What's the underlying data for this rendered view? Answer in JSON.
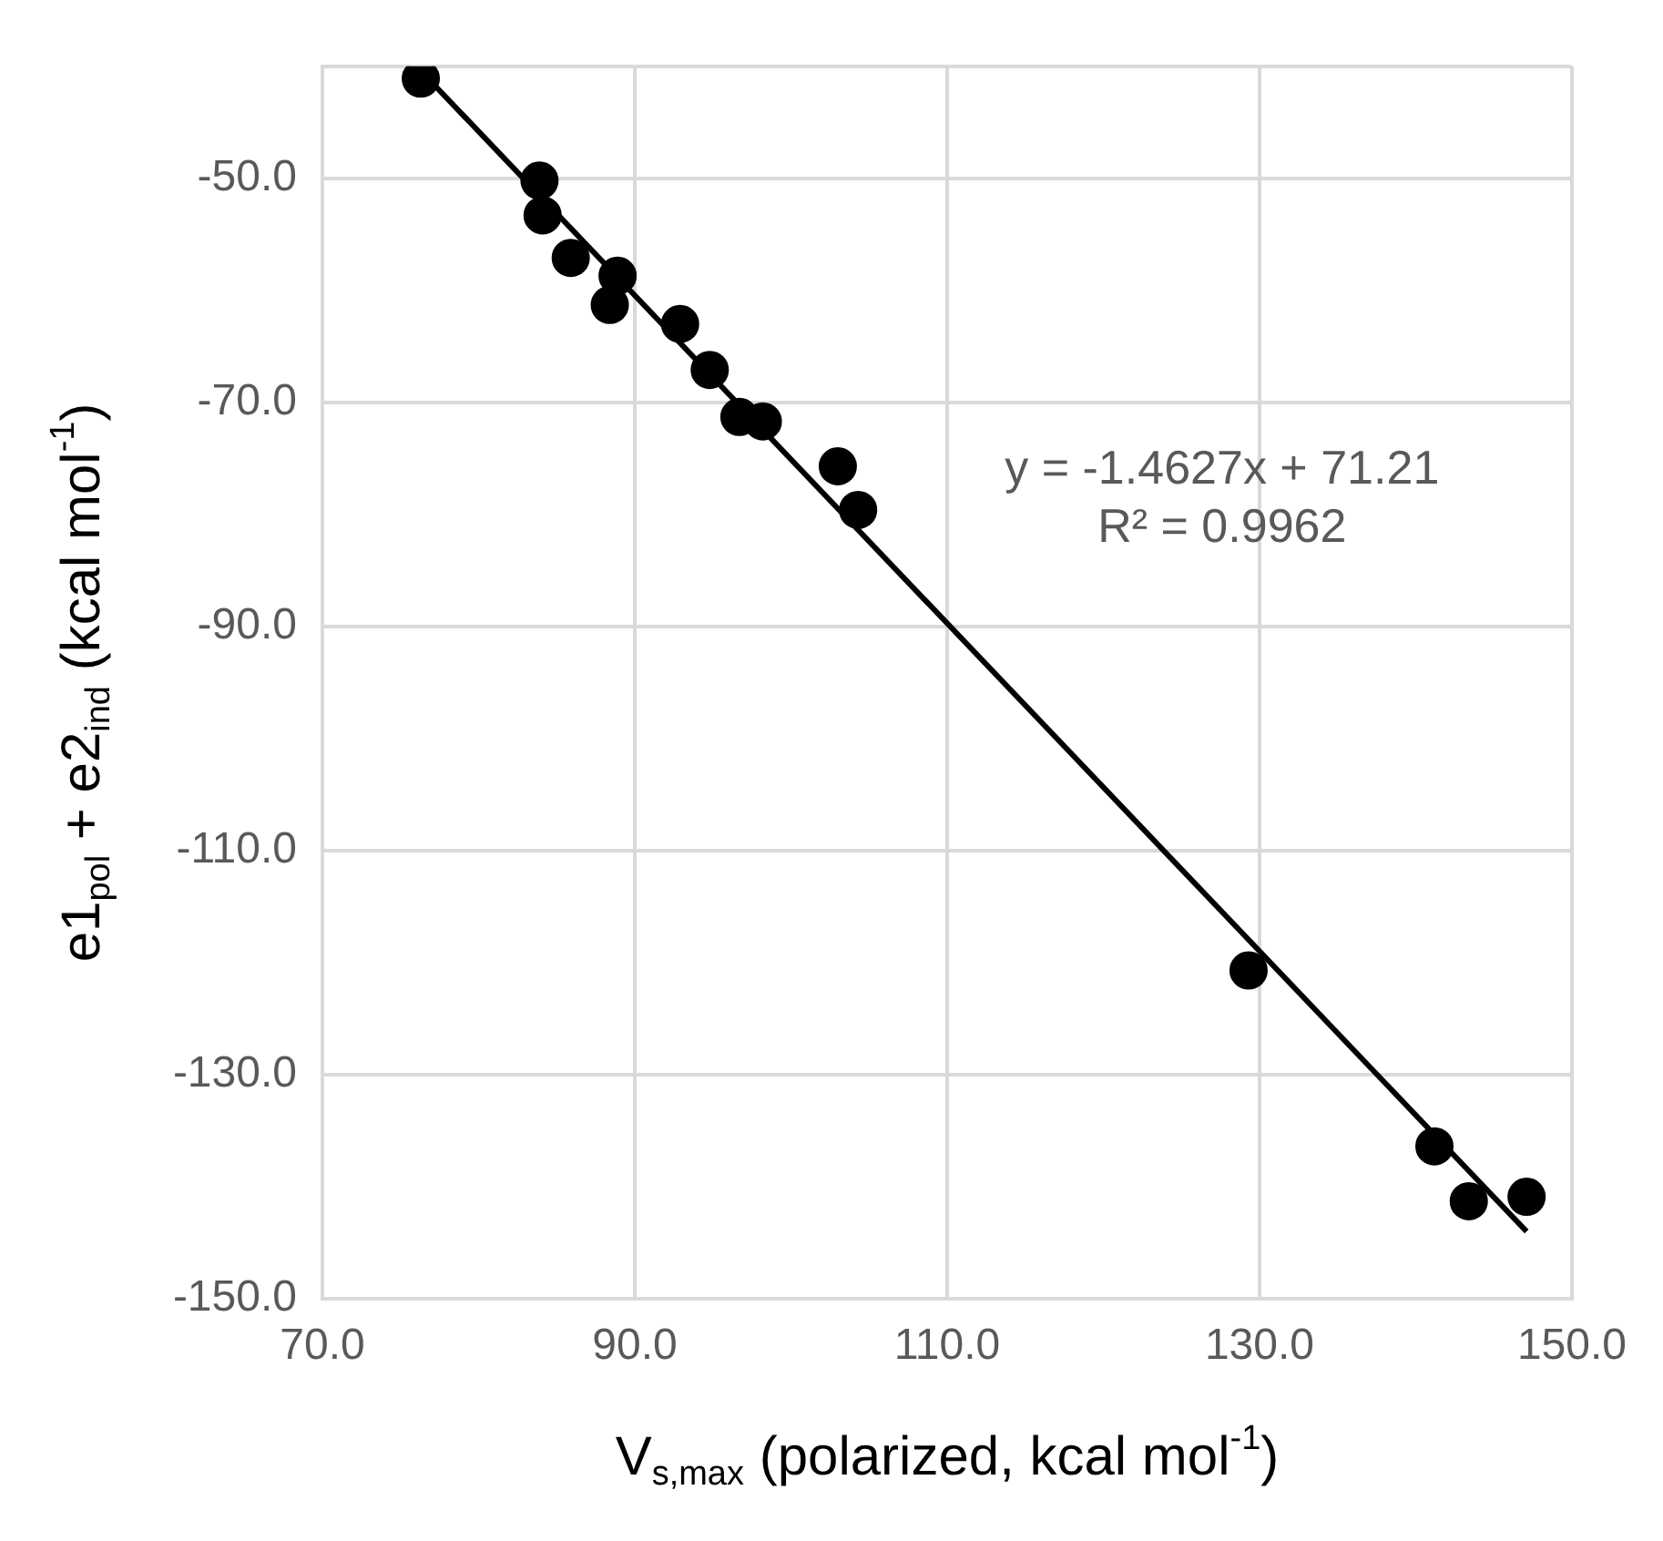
{
  "chart_data": {
    "type": "scatter",
    "xlabel": "V$_{s,max}$ (polarized, kcal mol$^{-1}$)",
    "ylabel": "e1$_{pol}$ + e2$_{ind}$ (kcal mol$^{-1}$)",
    "annotations": [
      "y = -1.4627x + 71.21",
      "R² = 0.9962"
    ],
    "xlim": [
      70,
      150
    ],
    "xticks": [
      {
        "value": 70,
        "label": "70.0"
      },
      {
        "value": 90,
        "label": "90.0"
      },
      {
        "value": 110,
        "label": "110.0"
      },
      {
        "value": 130,
        "label": "130.0"
      },
      {
        "value": 150,
        "label": "150.0"
      }
    ],
    "ylim": [
      -150,
      -40
    ],
    "yticks": [
      {
        "value": -150,
        "label": "-150.0"
      },
      {
        "value": -130,
        "label": "-130.0"
      },
      {
        "value": -110,
        "label": "-110.0"
      },
      {
        "value": -90,
        "label": "-90.0"
      },
      {
        "value": -70,
        "label": "-70.0"
      },
      {
        "value": -50,
        "label": "-50.0"
      },
      {
        "value": -40,
        "label": null
      }
    ],
    "grid": true,
    "marker": "circle",
    "series": [
      {
        "type": "scatter",
        "color": "#000000",
        "x": [
          76.3,
          83.9,
          84.1,
          85.9,
          88.9,
          88.4,
          92.9,
          94.8,
          96.7,
          98.2,
          103.0,
          104.3,
          129.3,
          141.2,
          143.4,
          147.1
        ],
        "values": [
          -41.1,
          -50.2,
          -53.3,
          -57.1,
          -58.7,
          -61.3,
          -63.0,
          -67.1,
          -71.3,
          -71.7,
          -75.7,
          -79.6,
          -120.7,
          -136.4,
          -141.3,
          -140.9
        ]
      },
      {
        "type": "line",
        "color": "#000000",
        "marker": "none",
        "x": [
          76.3,
          147.1
        ],
        "values": [
          -40.4,
          -144.0
        ]
      }
    ]
  }
}
